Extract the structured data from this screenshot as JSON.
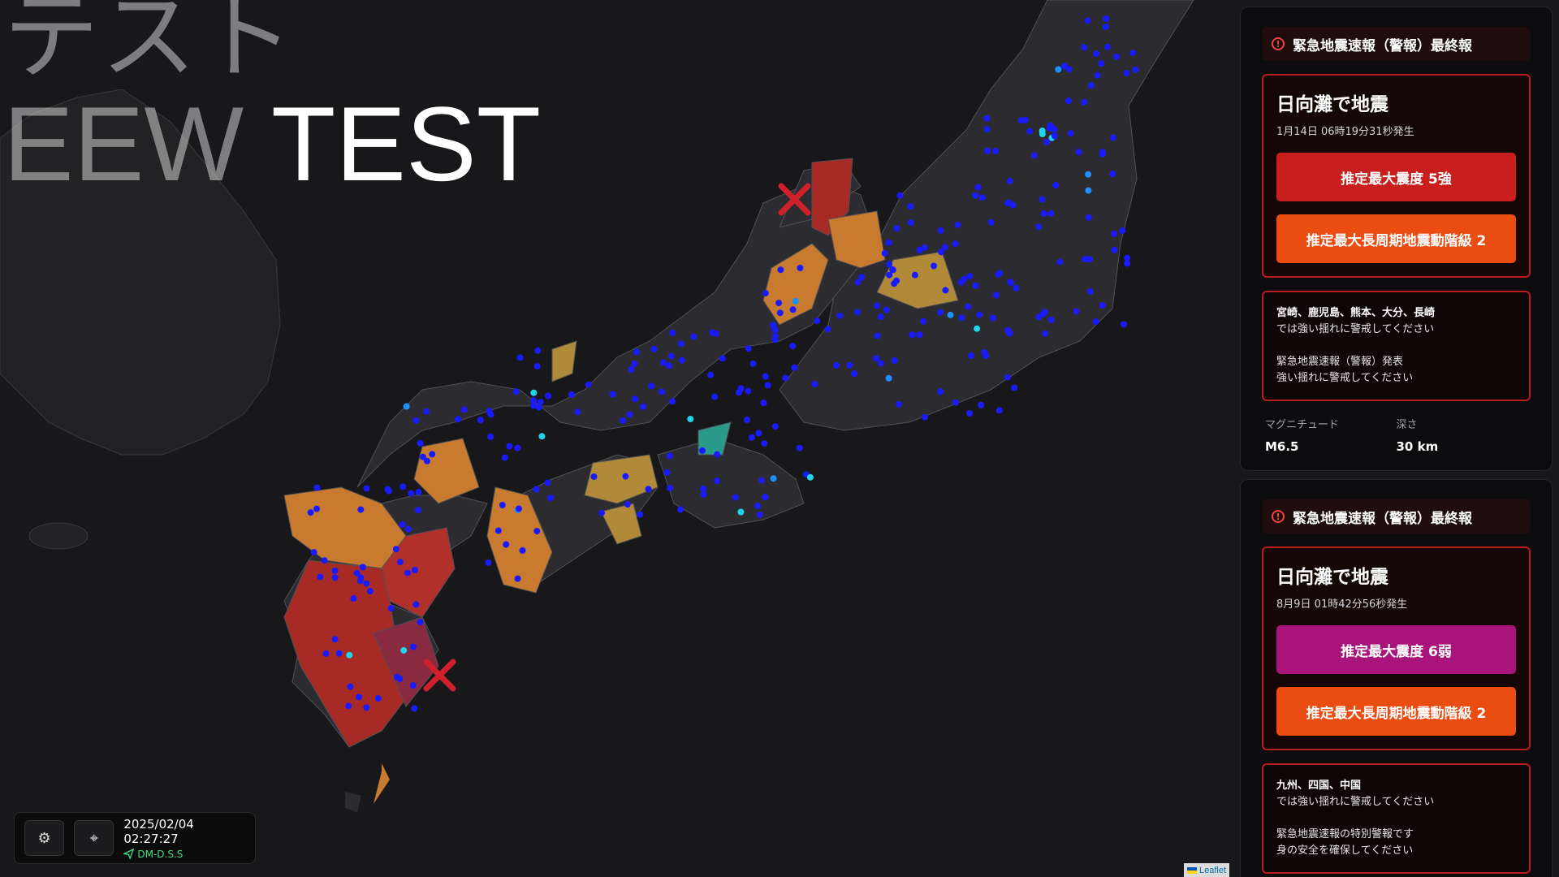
{
  "overlay": {
    "title_jp": "テスト",
    "title_en_dim": "EEW",
    "title_en_bright": "TEST"
  },
  "status_bar": {
    "timestamp": "2025/02/04 02:27:27",
    "source": "DM-D.S.S",
    "settings_icon": "gear-icon",
    "locate_icon": "crosshair-icon"
  },
  "map": {
    "attribution": "Leaflet",
    "land_color": "#2b2b2e",
    "sea_color": "#18181b",
    "station_color": "#1a1aff",
    "epicenter_marker_color": "#d0202c"
  },
  "alerts": [
    {
      "header": "緊急地震速報（警報）最終報",
      "title": "日向灘で地震",
      "time": "1月14日 06時19分31秒発生",
      "intensity_label": "推定最大震度 5強",
      "intensity_color": "#c81e1e",
      "long_period_label": "推定最大長周期地震動階級 2",
      "long_period_color": "#ea4c12",
      "regions": "宮崎、鹿児島、熊本、大分、長崎",
      "regions_note": "では強い揺れに警戒してください",
      "notice_1": "緊急地震速報（警報）発表",
      "notice_2": "強い揺れに警戒してください",
      "magnitude_label": "マグニチュード",
      "magnitude": "M6.5",
      "depth_label": "深さ",
      "depth": "30 km"
    },
    {
      "header": "緊急地震速報（警報）最終報",
      "title": "日向灘で地震",
      "time": "8月9日 01時42分56秒発生",
      "intensity_label": "推定最大震度 6弱",
      "intensity_color": "#a8147a",
      "long_period_label": "推定最大長周期地震動階級 2",
      "long_period_color": "#ea4c12",
      "regions": "九州、四国、中国",
      "regions_note": "では強い揺れに警戒してください",
      "notice_1": "緊急地震速報の特別警報です",
      "notice_2": "身の安全を確保してください"
    }
  ]
}
